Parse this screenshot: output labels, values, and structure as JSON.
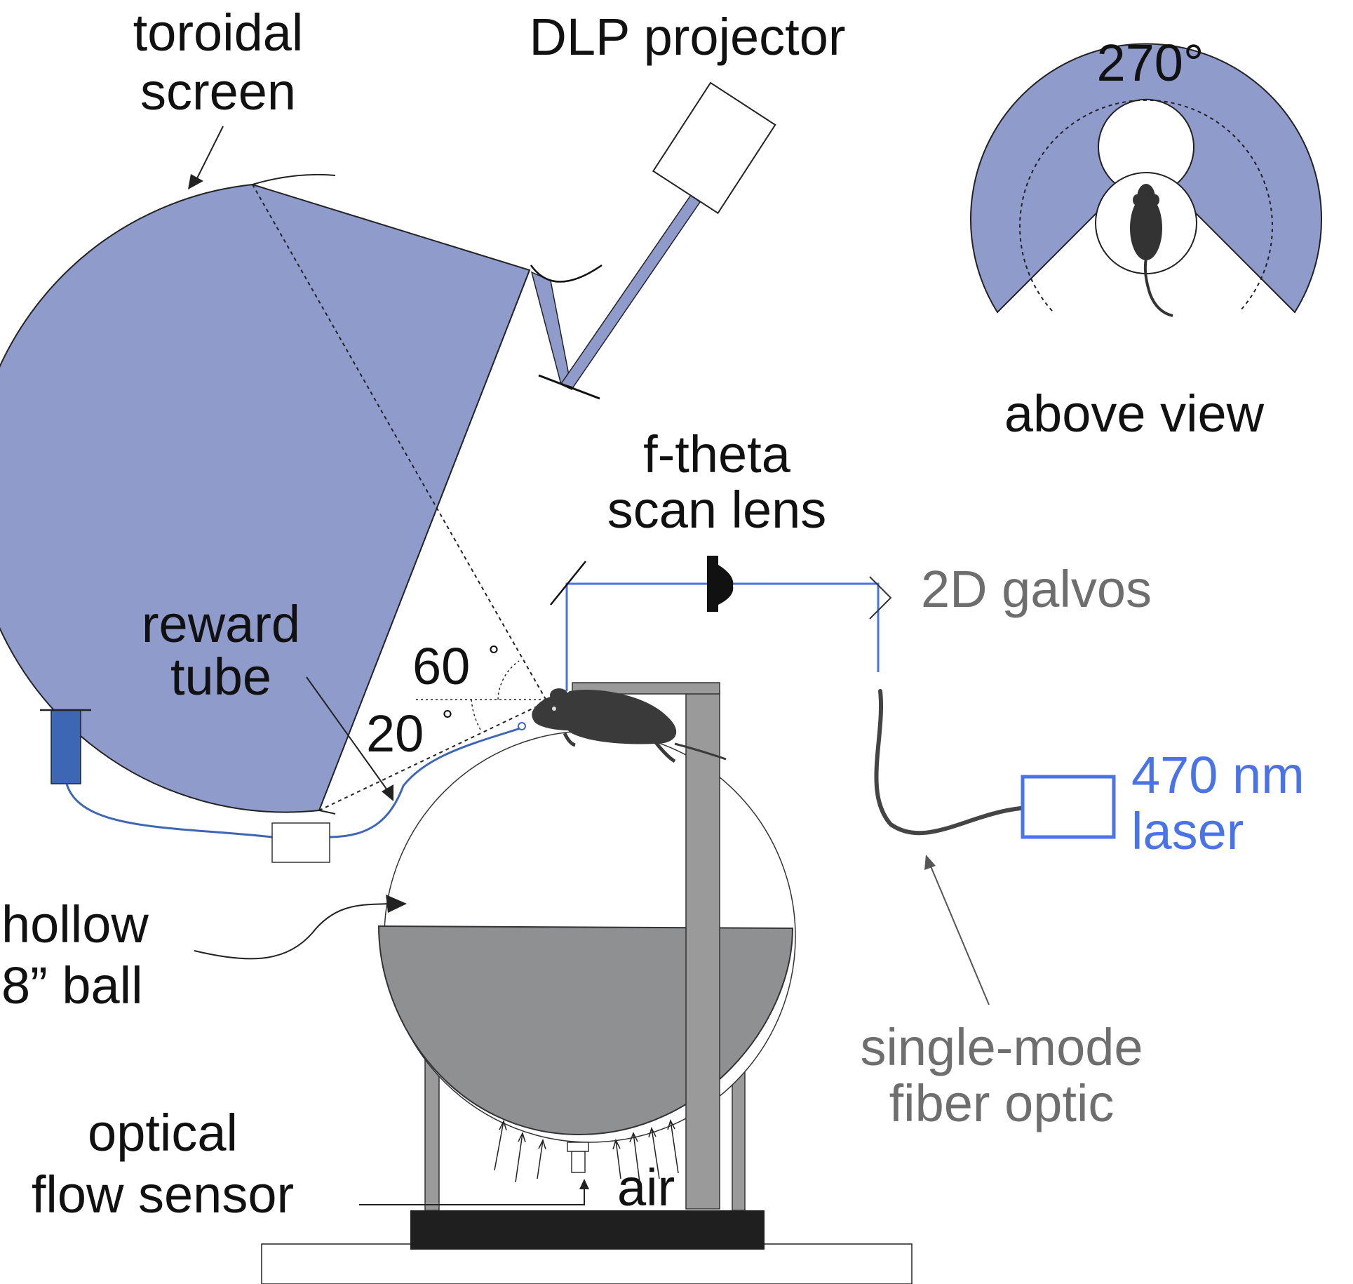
{
  "labels": {
    "toroidal_screen_line1": "toroidal",
    "toroidal_screen_line2": "screen",
    "dlp_projector": "DLP projector",
    "angle_270": "270°",
    "above_view": "above view",
    "ftheta_line1": "f-theta",
    "ftheta_line2": "scan lens",
    "galvos": "2D galvos",
    "reward_line1": "reward",
    "reward_line2": "tube",
    "angle_60": "60",
    "angle_20": "20",
    "degree_symbol": "°",
    "laser_line1": "470 nm",
    "laser_line2": "laser",
    "ball_line1": "hollow",
    "ball_line2": "8” ball",
    "fiber_line1": "single-mode",
    "fiber_line2": "fiber optic",
    "sensor_line1": "optical",
    "sensor_line2": "flow sensor",
    "air": "air"
  },
  "colors": {
    "screen_fill": "#8f9bcb",
    "laser_blue": "#4a73e8",
    "reward_blue": "#3d66b5",
    "bowl_gray": "#8f9091",
    "post_gray": "#9a9a9a",
    "mouse_dark": "#3a3a3a",
    "text_gray": "#6e6e6e"
  }
}
